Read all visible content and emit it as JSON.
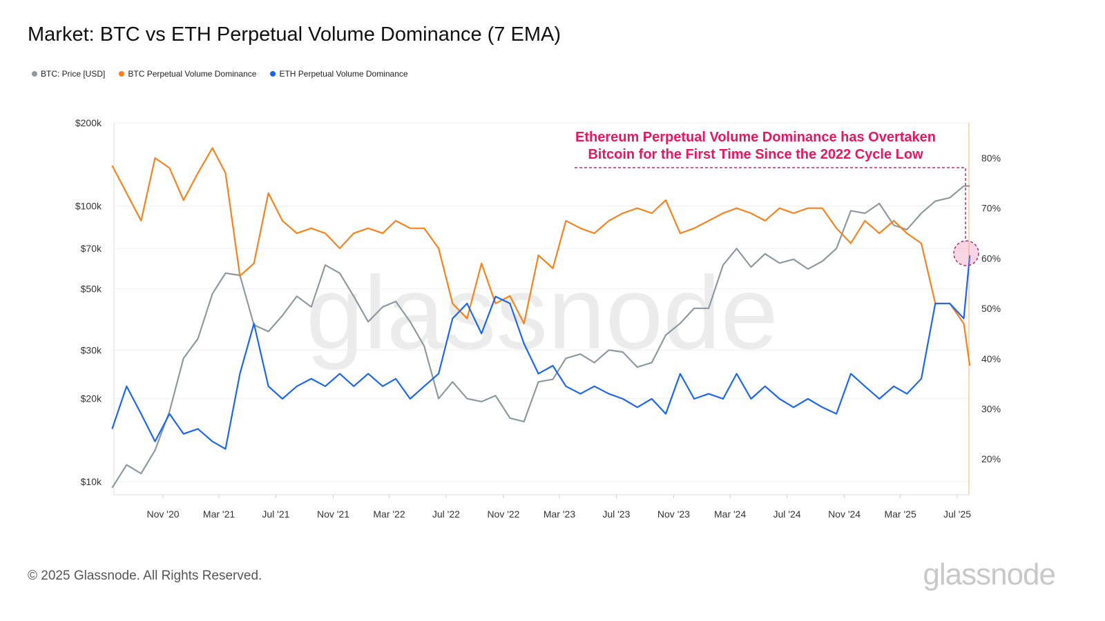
{
  "title": "Market: BTC vs ETH Perpetual Volume Dominance (7 EMA)",
  "footer": "© 2025 Glassnode. All Rights Reserved.",
  "logo": "glassnode",
  "chart_data": {
    "type": "line",
    "title": "Market: BTC vs ETH Perpetual Volume Dominance (7 EMA)",
    "legend_position": "top-left",
    "grid": true,
    "annotation": [
      "Ethereum Perpetual Volume Dominance has Overtaken",
      "Bitcoin for the First Time Since the 2022 Cycle Low"
    ],
    "annotation_color": "#e8175d",
    "x_ticks": [
      "Nov '20",
      "Mar '21",
      "Jul '21",
      "Nov '21",
      "Mar '22",
      "Jul '22",
      "Nov '22",
      "Mar '23",
      "Jul '23",
      "Nov '23",
      "Mar '24",
      "Jul '24",
      "Nov '24",
      "Mar '25",
      "Jul '25"
    ],
    "x_tick_dates": [
      "2020-11-01",
      "2021-03-01",
      "2021-07-01",
      "2021-11-01",
      "2022-03-01",
      "2022-07-01",
      "2022-11-01",
      "2023-03-01",
      "2023-07-01",
      "2023-11-01",
      "2024-03-01",
      "2024-07-01",
      "2024-11-01",
      "2025-03-01",
      "2025-07-01"
    ],
    "y_left": {
      "scale": "log",
      "range": [
        10000,
        200000
      ],
      "ticks": [
        10000,
        20000,
        30000,
        50000,
        70000,
        100000,
        200000
      ],
      "tick_labels": [
        "$10k",
        "$20k",
        "$30k",
        "$50k",
        "$70k",
        "$100k",
        "$200k"
      ]
    },
    "y_right": {
      "scale": "linear",
      "ticks": [
        20,
        30,
        40,
        50,
        60,
        70,
        80
      ],
      "tick_labels": [
        "20%",
        "30%",
        "40%",
        "50%",
        "60%",
        "70%",
        "80%"
      ]
    },
    "dates": [
      "2020-07-15",
      "2020-08-15",
      "2020-09-15",
      "2020-10-15",
      "2020-11-15",
      "2020-12-15",
      "2021-01-15",
      "2021-02-15",
      "2021-03-15",
      "2021-04-15",
      "2021-05-15",
      "2021-06-15",
      "2021-07-15",
      "2021-08-15",
      "2021-09-15",
      "2021-10-15",
      "2021-11-15",
      "2021-12-15",
      "2022-01-15",
      "2022-02-15",
      "2022-03-15",
      "2022-04-15",
      "2022-05-15",
      "2022-06-15",
      "2022-07-15",
      "2022-08-15",
      "2022-09-15",
      "2022-10-15",
      "2022-11-15",
      "2022-12-15",
      "2023-01-15",
      "2023-02-15",
      "2023-03-15",
      "2023-04-15",
      "2023-05-15",
      "2023-06-15",
      "2023-07-15",
      "2023-08-15",
      "2023-09-15",
      "2023-10-15",
      "2023-11-15",
      "2023-12-15",
      "2024-01-15",
      "2024-02-15",
      "2024-03-15",
      "2024-04-15",
      "2024-05-15",
      "2024-06-15",
      "2024-07-15",
      "2024-08-15",
      "2024-09-15",
      "2024-10-15",
      "2024-11-15",
      "2024-12-15",
      "2025-01-15",
      "2025-02-15",
      "2025-03-15",
      "2025-04-15",
      "2025-05-15",
      "2025-06-15",
      "2025-07-15",
      "2025-07-28"
    ],
    "series": [
      {
        "name": "BTC: Price [USD]",
        "axis": "left",
        "color": "#8c9a9e",
        "values": [
          9500,
          11500,
          10700,
          13000,
          18000,
          28000,
          33000,
          48000,
          57000,
          56000,
          37000,
          35000,
          40000,
          47000,
          43000,
          61000,
          57000,
          47000,
          38000,
          43000,
          45000,
          38000,
          31000,
          20000,
          23000,
          20000,
          19500,
          20500,
          17000,
          16500,
          23000,
          23500,
          28000,
          29000,
          27000,
          30000,
          29500,
          26000,
          27000,
          34000,
          37500,
          42500,
          42500,
          61000,
          70000,
          60000,
          67000,
          62000,
          64000,
          59000,
          63000,
          70000,
          96000,
          94000,
          102000,
          85000,
          82000,
          94000,
          104000,
          107000,
          118000,
          118000
        ]
      },
      {
        "name": "BTC Perpetual Volume Dominance",
        "axis": "right",
        "color": "#f7821b",
        "values": [
          78.5,
          73,
          67.5,
          80,
          78,
          71.6,
          77,
          82,
          77,
          56.5,
          59,
          73,
          67.5,
          65,
          66,
          65,
          62,
          65,
          66,
          65,
          67.5,
          66,
          66,
          62,
          51,
          48,
          59,
          51,
          52.5,
          47,
          60.6,
          58,
          67.5,
          66,
          65,
          67.5,
          69,
          70,
          69,
          71.6,
          65,
          66,
          67.5,
          69,
          70,
          69,
          67.5,
          70,
          69,
          70,
          70,
          66,
          63,
          67.5,
          65,
          67.5,
          65,
          63,
          51,
          51,
          47,
          38.6
        ]
      },
      {
        "name": "ETH Perpetual Volume Dominance",
        "axis": "right",
        "color": "#1a66f0",
        "values": [
          26,
          34.5,
          29,
          23.5,
          29,
          25,
          26,
          23.5,
          22,
          37,
          47,
          34.5,
          32,
          34.5,
          36,
          34.5,
          37,
          34.5,
          37,
          34.5,
          36,
          32,
          34.5,
          37,
          48,
          51,
          45,
          52.4,
          51,
          43,
          37,
          38.6,
          34.5,
          33,
          34.5,
          33,
          32,
          30.3,
          32,
          29,
          37,
          32,
          33,
          32,
          37,
          32,
          34.5,
          32,
          30.3,
          32,
          30.3,
          29,
          37,
          34.5,
          32,
          34.5,
          33,
          36,
          51,
          51,
          48,
          60.6
        ]
      }
    ]
  }
}
